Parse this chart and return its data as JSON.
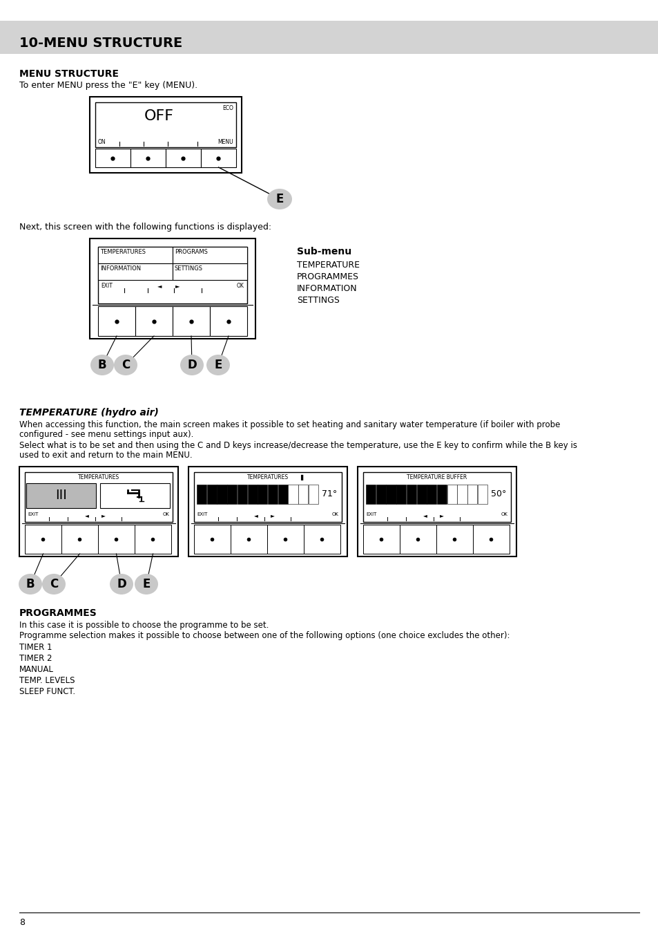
{
  "page_title": "10-MENU STRUCTURE",
  "section1_title": "MENU STRUCTURE",
  "section1_text": "To enter MENU press the \"E\" key (MENU).",
  "next_screen_text": "Next, this screen with the following functions is displayed:",
  "submenu_title": "Sub-menu",
  "submenu_items": [
    "TEMPERATURE",
    "PROGRAMMES",
    "INFORMATION",
    "SETTINGS"
  ],
  "section2_title": "TEMPERATURE (hydro air)",
  "section2_text1a": "When accessing this function, the main screen makes it possible to set heating and sanitary water temperature (if boiler with probe",
  "section2_text1b": "configured - see menu settings input aux).",
  "section2_text2a": "Select what is to be set and then using the C and D keys increase/decrease the temperature, use the E key to confirm while the B key is",
  "section2_text2b": "used to exit and return to the main MENU.",
  "section3_title": "PROGRAMMES",
  "section3_text1": "In this case it is possible to choose the programme to be set.",
  "section3_text2": "Programme selection makes it possible to choose between one of the following options (one choice excludes the other):",
  "section3_items": [
    "TIMER 1",
    "TIMER 2",
    "MANUAL",
    "TEMP. LEVELS",
    "SLEEP FUNCT."
  ],
  "page_number": "8",
  "bg_color": "#ffffff",
  "header_bg": "#d3d3d3",
  "text_color": "#000000"
}
